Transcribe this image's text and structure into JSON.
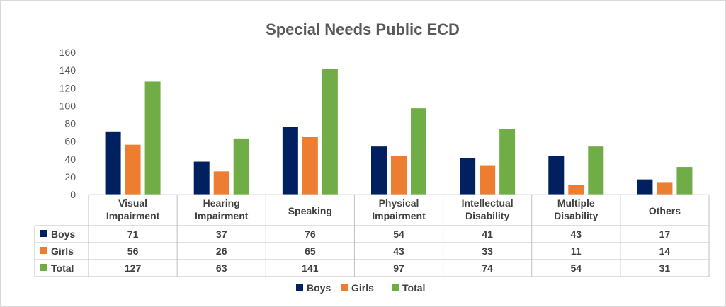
{
  "chart_data": {
    "type": "bar",
    "title": "Special Needs Public ECD",
    "categories": [
      [
        "Visual",
        "Impairment"
      ],
      [
        "Hearing",
        "Impairment"
      ],
      [
        "Speaking"
      ],
      [
        "Physical",
        "Impairment"
      ],
      [
        "Intellectual",
        "Disability"
      ],
      [
        "Multiple",
        "Disability"
      ],
      [
        "Others"
      ]
    ],
    "series": [
      {
        "name": "Boys",
        "color": "#002060",
        "values": [
          71,
          37,
          76,
          54,
          41,
          43,
          17
        ]
      },
      {
        "name": "Girls",
        "color": "#ED7D31",
        "values": [
          56,
          26,
          65,
          43,
          33,
          11,
          14
        ]
      },
      {
        "name": "Total",
        "color": "#70AD47",
        "values": [
          127,
          63,
          141,
          97,
          74,
          54,
          31
        ]
      }
    ],
    "ylim": [
      0,
      160
    ],
    "yticks": [
      0,
      20,
      40,
      60,
      80,
      100,
      120,
      140,
      160
    ],
    "grid": false,
    "legend": "bottom",
    "data_table": true
  }
}
